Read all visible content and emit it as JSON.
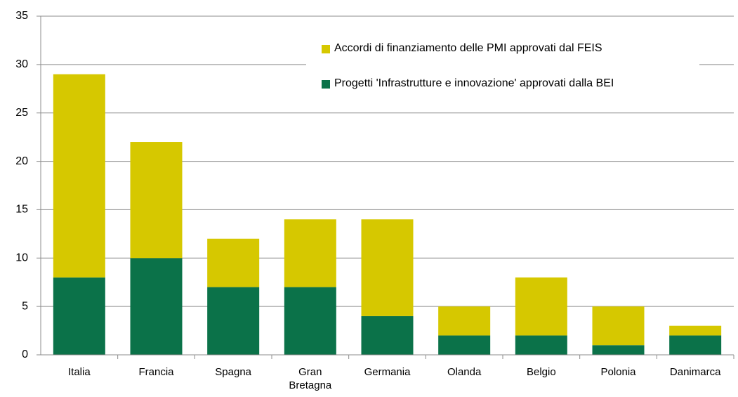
{
  "chart_data": {
    "type": "stacked_bar",
    "categories": [
      "Italia",
      "Francia",
      "Spagna",
      "Gran Bretagna",
      "Germania",
      "Olanda",
      "Belgio",
      "Polonia",
      "Danimarca"
    ],
    "series": [
      {
        "name": "Progetti 'Infrastrutture e innovazione' approvati dalla BEI",
        "color": "#0b7249",
        "values": [
          8,
          10,
          7,
          7,
          4,
          2,
          2,
          1,
          2
        ]
      },
      {
        "name": "Accordi di finanziamento delle PMI approvati dal FEIS",
        "color": "#d6c800",
        "values": [
          21,
          12,
          5,
          7,
          10,
          3,
          6,
          4,
          1
        ]
      }
    ],
    "ylim": [
      0,
      35
    ],
    "yticks": [
      0,
      5,
      10,
      15,
      20,
      25,
      30,
      35
    ],
    "grid": true
  }
}
